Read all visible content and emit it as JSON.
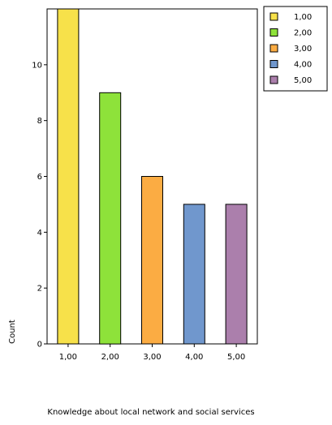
{
  "chart_data": {
    "type": "bar",
    "categories": [
      "1,00",
      "2,00",
      "3,00",
      "4,00",
      "5,00"
    ],
    "values": [
      12,
      9,
      6,
      5,
      5
    ],
    "colors": [
      "#f7e14a",
      "#8ee23a",
      "#fbac43",
      "#7097cd",
      "#ab7fac"
    ],
    "title": "",
    "xlabel": "Knowledge about local network and social services",
    "ylabel": "Count",
    "ylim": [
      0,
      12
    ],
    "yticks": [
      0,
      2,
      4,
      6,
      8,
      10
    ],
    "ytick_labels": [
      "0",
      "2",
      "4",
      "6",
      "8",
      "10"
    ],
    "grid": false,
    "legend": {
      "placement": "top-right",
      "entries": [
        "1,00",
        "2,00",
        "3,00",
        "4,00",
        "5,00"
      ]
    }
  }
}
